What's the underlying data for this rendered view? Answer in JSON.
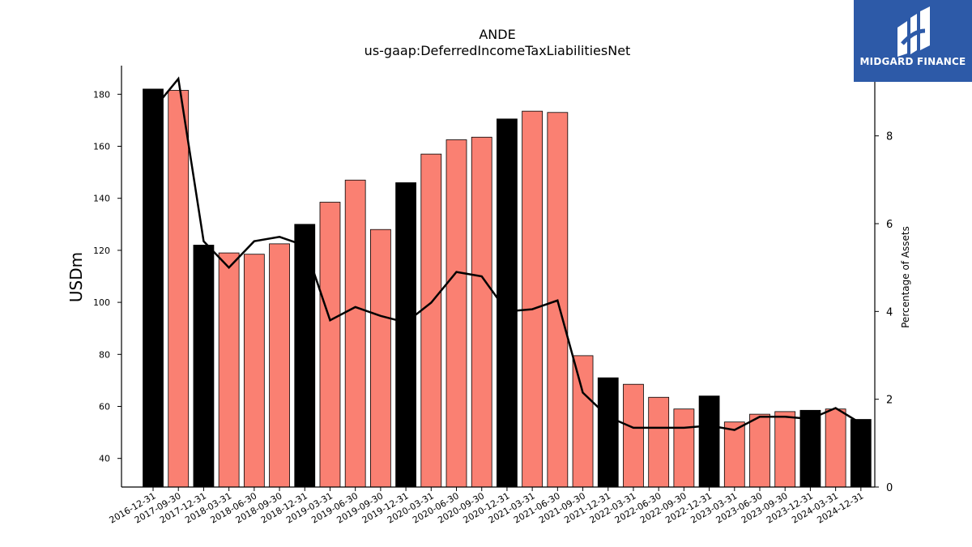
{
  "logo": {
    "text": "MIDGARD FINANCE"
  },
  "chart_data": {
    "type": "bar",
    "title": "ANDE",
    "subtitle": "us-gaap:DeferredIncomeTaxLiabilitiesNet",
    "ylabel": "USDm",
    "y2label": "Percentage of Assets",
    "ylim": [
      29,
      191
    ],
    "y2lim": [
      0,
      9.6
    ],
    "yticks": [
      40,
      60,
      80,
      100,
      120,
      140,
      160,
      180
    ],
    "y2ticks": [
      0,
      2,
      4,
      6,
      8
    ],
    "colors": {
      "annual": "#000000",
      "quarter": "#fa8072",
      "line": "#000000"
    },
    "categories": [
      "2016-12-31",
      "2017-09-30",
      "2017-12-31",
      "2018-03-31",
      "2018-06-30",
      "2018-09-30",
      "2018-12-31",
      "2019-03-31",
      "2019-06-30",
      "2019-09-30",
      "2019-12-31",
      "2020-03-31",
      "2020-06-30",
      "2020-09-30",
      "2020-12-31",
      "2021-03-31",
      "2021-06-30",
      "2021-09-30",
      "2021-12-31",
      "2022-03-31",
      "2022-06-30",
      "2022-09-30",
      "2022-12-31",
      "2023-03-31",
      "2023-06-30",
      "2023-09-30",
      "2023-12-31",
      "2024-03-31",
      "2024-12-31"
    ],
    "series": [
      {
        "kind": "bar",
        "values": [
          182,
          181.5,
          122,
          119,
          118.5,
          122.5,
          130,
          138.5,
          147,
          128,
          146,
          157,
          162.5,
          163.5,
          170.5,
          173.5,
          173,
          79.5,
          71,
          68.5,
          63.5,
          59,
          64,
          54,
          57,
          58,
          58.5,
          59,
          55
        ],
        "annual": [
          true,
          false,
          true,
          false,
          false,
          false,
          true,
          false,
          false,
          false,
          true,
          false,
          false,
          false,
          true,
          false,
          false,
          false,
          true,
          false,
          false,
          false,
          true,
          false,
          false,
          false,
          true,
          false,
          true
        ]
      },
      {
        "kind": "line",
        "axis": "right",
        "values": [
          8.6,
          9.3,
          5.6,
          5.0,
          5.6,
          5.7,
          5.5,
          3.8,
          4.1,
          3.9,
          3.75,
          4.2,
          4.9,
          4.8,
          4.0,
          4.05,
          4.25,
          2.15,
          1.6,
          1.35,
          1.35,
          1.35,
          1.4,
          1.3,
          1.6,
          1.6,
          1.55,
          1.8,
          1.45
        ]
      }
    ]
  }
}
